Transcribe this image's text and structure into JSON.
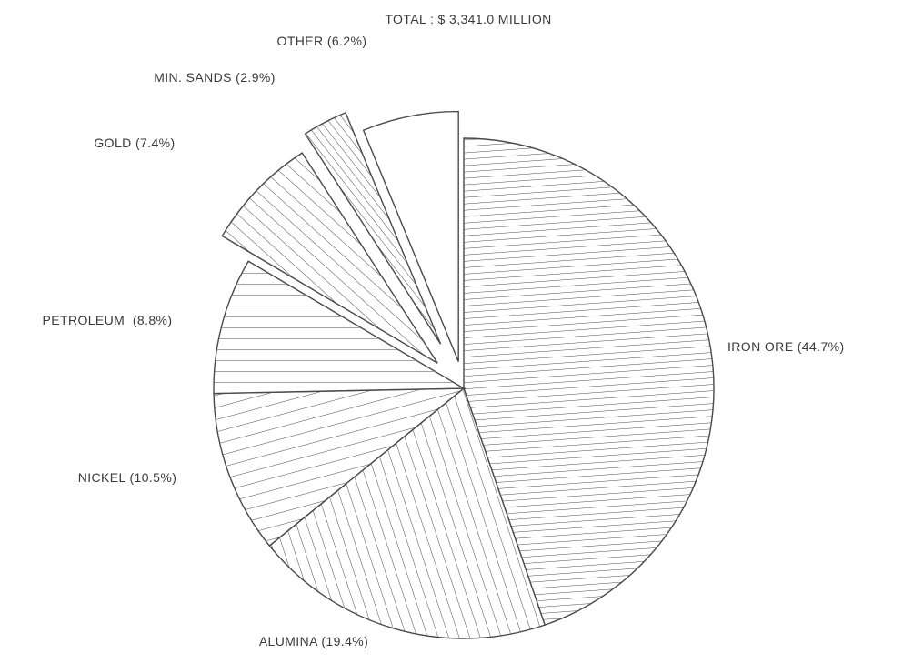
{
  "chart_data": {
    "type": "pie",
    "title": "TOTAL : $ 3,341.0 MILLION",
    "exploded": [
      "GOLD",
      "MIN. SANDS",
      "OTHER"
    ],
    "slices": [
      {
        "name": "IRON ORE",
        "value": 44.7,
        "label": "IRON ORE (44.7%)"
      },
      {
        "name": "ALUMINA",
        "value": 19.4,
        "label": "ALUMINA (19.4%)"
      },
      {
        "name": "NICKEL",
        "value": 10.5,
        "label": "NICKEL (10.5%)"
      },
      {
        "name": "PETROLEUM",
        "value": 8.8,
        "label": "PETROLEUM  (8.8%)"
      },
      {
        "name": "GOLD",
        "value": 7.4,
        "label": "GOLD (7.4%)"
      },
      {
        "name": "MIN. SANDS",
        "value": 2.9,
        "label": "MIN. SANDS (2.9%)"
      },
      {
        "name": "OTHER",
        "value": 6.2,
        "label": "OTHER (6.2%)"
      }
    ],
    "colors": {
      "line": "#4a4a4a",
      "text": "#3a3a3a",
      "background": "#ffffff"
    }
  }
}
